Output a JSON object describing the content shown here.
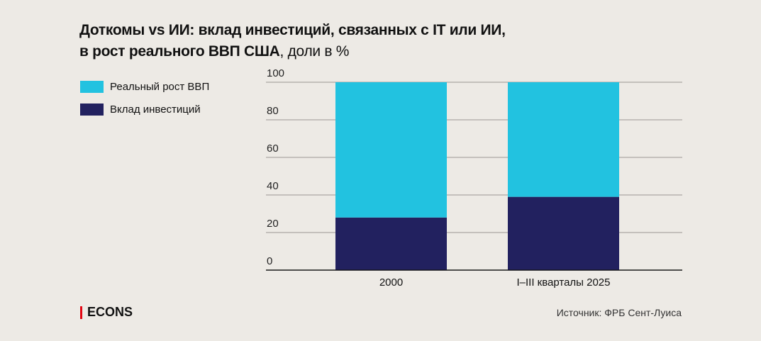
{
  "title": {
    "bold": "Доткомы vs ИИ: вклад инвестиций, связанных с IT или ИИ,",
    "bold2": "в рост реального ВВП США",
    "normal": ", доли в %"
  },
  "chart_data": {
    "type": "bar",
    "stacked": true,
    "categories": [
      "2000",
      "I–III кварталы 2025"
    ],
    "series": [
      {
        "name": "Вклад инвестиций",
        "values": [
          28,
          39
        ],
        "color": "#22215f"
      },
      {
        "name": "Реальный рост ВВП",
        "values": [
          72,
          61
        ],
        "color": "#22c2e0"
      }
    ],
    "ylim": [
      0,
      100
    ],
    "yticks": [
      "0",
      "20",
      "40",
      "60",
      "80",
      "100"
    ],
    "grid": true,
    "legend": "top-left"
  },
  "legend": [
    {
      "label": "Реальный рост ВВП",
      "color": "#22c2e0"
    },
    {
      "label": "Вклад инвестиций",
      "color": "#22215f"
    }
  ],
  "logo": "ECONS",
  "source": "Источник: ФРБ Сент-Луиса"
}
